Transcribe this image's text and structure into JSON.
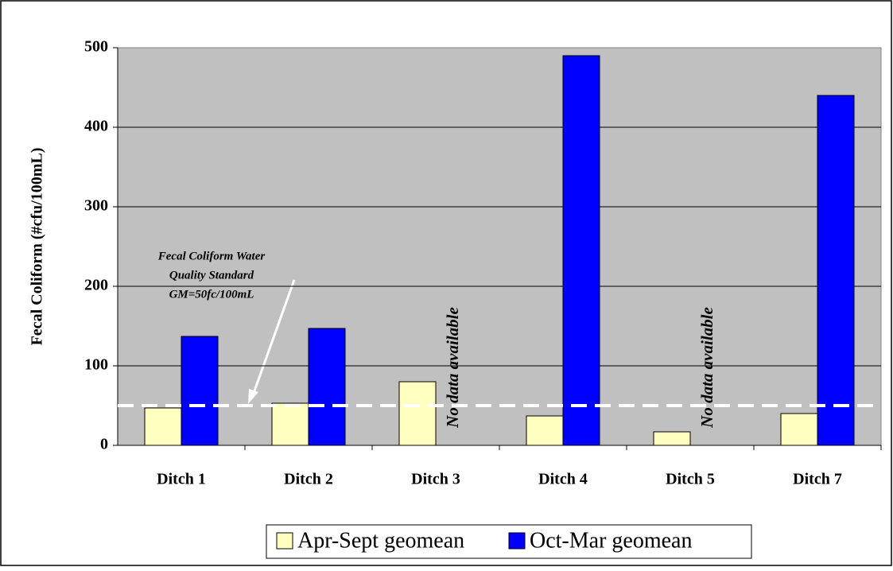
{
  "chart_data": {
    "type": "bar",
    "y_label": "Fecal Coliform (#cfu/100mL)",
    "categories": [
      "Ditch 1",
      "Ditch 2",
      "Ditch 3",
      "Ditch 4",
      "Ditch 5",
      "Ditch 7"
    ],
    "series": [
      {
        "name": "Apr-Sept geomean",
        "color": "#ffffc0",
        "values": [
          47,
          53,
          80,
          37,
          17,
          40
        ]
      },
      {
        "name": "Oct-Mar geomean",
        "color": "#0000ff",
        "values": [
          137,
          147,
          null,
          490,
          null,
          440
        ]
      }
    ],
    "ylim": [
      0,
      500
    ],
    "yticks": [
      0,
      100,
      200,
      300,
      400,
      500
    ],
    "grid": true,
    "standard_line": 50,
    "standard_annotation": [
      "Fecal Coliform Water",
      "Quality Standard",
      "GM=50fc/100mL"
    ],
    "no_data_label": "No data available",
    "legend": "bottom"
  }
}
